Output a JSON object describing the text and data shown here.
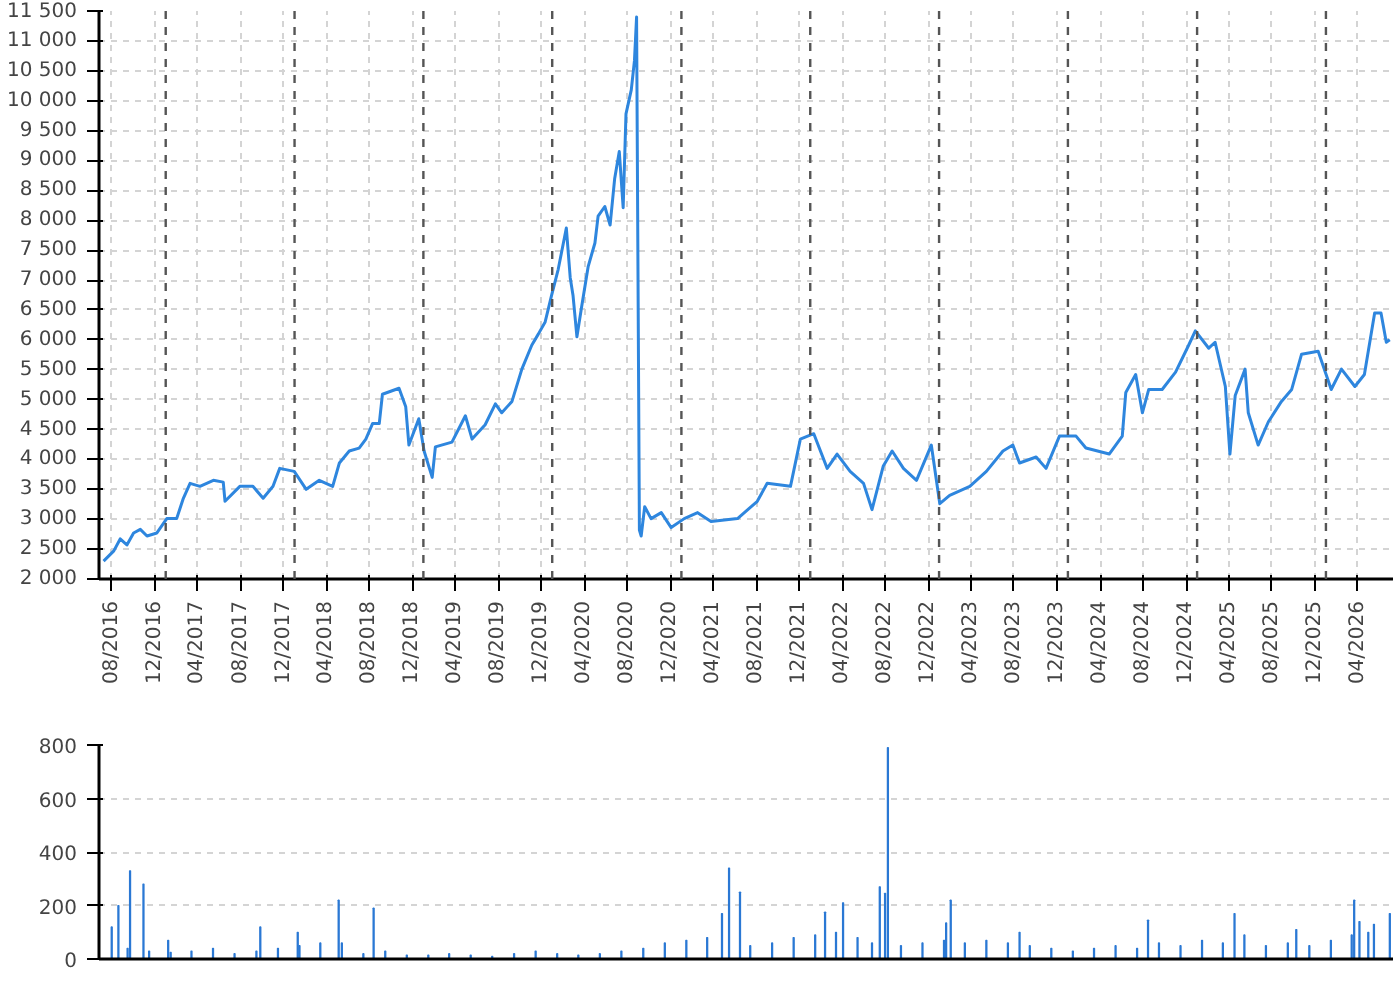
{
  "chart_data": [
    {
      "type": "line",
      "color": "#2e86de",
      "grid": true,
      "xlim": [
        "2016-06-26",
        "2026-07-10"
      ],
      "ylim": [
        2000,
        11500
      ],
      "yticks": [
        {
          "value": 2000,
          "label": "2 000"
        },
        {
          "value": 2500,
          "label": "2 500"
        },
        {
          "value": 3000,
          "label": "3 000"
        },
        {
          "value": 3500,
          "label": "3 500"
        },
        {
          "value": 4000,
          "label": "4 000"
        },
        {
          "value": 4500,
          "label": "4 500"
        },
        {
          "value": 5000,
          "label": "5 000"
        },
        {
          "value": 5500,
          "label": "5 500"
        },
        {
          "value": 6000,
          "label": "6 000"
        },
        {
          "value": 6500,
          "label": "6 500"
        },
        {
          "value": 7000,
          "label": "7 000"
        },
        {
          "value": 7500,
          "label": "7 500"
        },
        {
          "value": 8000,
          "label": "8 000"
        },
        {
          "value": 8500,
          "label": "8 500"
        },
        {
          "value": 9000,
          "label": "9 000"
        },
        {
          "value": 9500,
          "label": "9 500"
        },
        {
          "value": 10000,
          "label": "10 000"
        },
        {
          "value": 10500,
          "label": "10 500"
        },
        {
          "value": 11000,
          "label": "11 000"
        },
        {
          "value": 11500,
          "label": "11 500"
        }
      ],
      "xticks": [
        {
          "value": "2016-08-01",
          "label": "08/2016"
        },
        {
          "value": "2016-12-01",
          "label": "12/2016"
        },
        {
          "value": "2017-04-01",
          "label": "04/2017"
        },
        {
          "value": "2017-08-01",
          "label": "08/2017"
        },
        {
          "value": "2017-12-01",
          "label": "12/2017"
        },
        {
          "value": "2018-04-01",
          "label": "04/2018"
        },
        {
          "value": "2018-08-01",
          "label": "08/2018"
        },
        {
          "value": "2018-12-01",
          "label": "12/2018"
        },
        {
          "value": "2019-04-01",
          "label": "04/2019"
        },
        {
          "value": "2019-08-01",
          "label": "08/2019"
        },
        {
          "value": "2019-12-01",
          "label": "12/2019"
        },
        {
          "value": "2020-04-01",
          "label": "04/2020"
        },
        {
          "value": "2020-08-01",
          "label": "08/2020"
        },
        {
          "value": "2020-12-01",
          "label": "12/2020"
        },
        {
          "value": "2021-04-01",
          "label": "04/2021"
        },
        {
          "value": "2021-08-01",
          "label": "08/2021"
        },
        {
          "value": "2021-12-01",
          "label": "12/2021"
        },
        {
          "value": "2022-04-01",
          "label": "04/2022"
        },
        {
          "value": "2022-08-01",
          "label": "08/2022"
        },
        {
          "value": "2022-12-01",
          "label": "12/2022"
        },
        {
          "value": "2023-04-01",
          "label": "04/2023"
        },
        {
          "value": "2023-08-01",
          "label": "08/2023"
        },
        {
          "value": "2023-12-01",
          "label": "12/2023"
        },
        {
          "value": "2024-04-01",
          "label": "04/2024"
        },
        {
          "value": "2024-08-01",
          "label": "08/2024"
        },
        {
          "value": "2024-12-01",
          "label": "12/2024"
        },
        {
          "value": "2025-04-01",
          "label": "04/2025"
        },
        {
          "value": "2025-08-01",
          "label": "08/2025"
        },
        {
          "value": "2025-12-01",
          "label": "12/2025"
        },
        {
          "value": "2026-04-01",
          "label": "04/2026"
        }
      ],
      "ref_lines": [
        {
          "axis": "x",
          "value": "2017-01-01",
          "color": "#555555",
          "line_style": "dashed"
        },
        {
          "axis": "x",
          "value": "2018-01-01",
          "color": "#555555",
          "line_style": "dashed"
        },
        {
          "axis": "x",
          "value": "2019-01-01",
          "color": "#555555",
          "line_style": "dashed"
        },
        {
          "axis": "x",
          "value": "2020-01-01",
          "color": "#555555",
          "line_style": "dashed"
        },
        {
          "axis": "x",
          "value": "2021-01-01",
          "color": "#555555",
          "line_style": "dashed"
        },
        {
          "axis": "x",
          "value": "2022-01-01",
          "color": "#555555",
          "line_style": "dashed"
        },
        {
          "axis": "x",
          "value": "2023-01-01",
          "color": "#555555",
          "line_style": "dashed"
        },
        {
          "axis": "x",
          "value": "2024-01-01",
          "color": "#555555",
          "line_style": "dashed"
        },
        {
          "axis": "x",
          "value": "2025-01-01",
          "color": "#555555",
          "line_style": "dashed"
        },
        {
          "axis": "x",
          "value": "2026-01-01",
          "color": "#555555",
          "line_style": "dashed"
        }
      ],
      "x": [
        "2016-07-09",
        "2016-08-07",
        "2016-08-25",
        "2016-09-13",
        "2016-10-02",
        "2016-10-21",
        "2016-11-09",
        "2016-12-07",
        "2017-01-04",
        "2017-02-01",
        "2017-02-20",
        "2017-03-11",
        "2017-04-08",
        "2017-05-16",
        "2017-06-13",
        "2017-06-18",
        "2017-07-30",
        "2017-09-05",
        "2017-10-04",
        "2017-11-01",
        "2017-11-20",
        "2017-12-31",
        "2018-02-03",
        "2018-03-12",
        "2018-04-19",
        "2018-05-08",
        "2018-06-05",
        "2018-07-03",
        "2018-07-22",
        "2018-08-10",
        "2018-08-29",
        "2018-09-07",
        "2018-10-24",
        "2018-11-12",
        "2018-11-21",
        "2018-12-19",
        "2019-01-03",
        "2019-01-26",
        "2019-02-04",
        "2019-03-23",
        "2019-04-30",
        "2019-05-19",
        "2019-06-25",
        "2019-07-24",
        "2019-08-11",
        "2019-09-09",
        "2019-10-07",
        "2019-11-04",
        "2019-11-23",
        "2019-12-12",
        "2019-12-30",
        "2020-01-18",
        "2020-02-10",
        "2020-02-21",
        "2020-02-29",
        "2020-03-11",
        "2020-03-24",
        "2020-04-12",
        "2020-05-01",
        "2020-05-10",
        "2020-05-29",
        "2020-06-13",
        "2020-06-26",
        "2020-07-09",
        "2020-07-20",
        "2020-07-28",
        "2020-08-12",
        "2020-08-21",
        "2020-08-27",
        "2020-09-04",
        "2020-09-09",
        "2020-09-19",
        "2020-10-07",
        "2020-11-05",
        "2020-12-03",
        "2021-01-09",
        "2021-02-16",
        "2021-03-26",
        "2021-06-09",
        "2021-08-04",
        "2021-09-01",
        "2021-11-06",
        "2021-12-04",
        "2022-01-11",
        "2022-02-18",
        "2022-03-18",
        "2022-04-24",
        "2022-06-01",
        "2022-06-25",
        "2022-07-27",
        "2022-08-21",
        "2022-09-22",
        "2022-10-29",
        "2022-12-10",
        "2023-01-03",
        "2023-01-31",
        "2023-03-29",
        "2023-05-15",
        "2023-07-01",
        "2023-07-29",
        "2023-08-17",
        "2023-10-03",
        "2023-10-31",
        "2023-12-08",
        "2024-01-24",
        "2024-02-21",
        "2024-04-27",
        "2024-06-03",
        "2024-06-13",
        "2024-07-11",
        "2024-07-30",
        "2024-08-17",
        "2024-09-24",
        "2024-11-01",
        "2024-12-08",
        "2024-12-27",
        "2025-02-03",
        "2025-02-21",
        "2025-03-22",
        "2025-04-04",
        "2025-04-19",
        "2025-05-17",
        "2025-05-26",
        "2025-06-23",
        "2025-07-22",
        "2025-08-28",
        "2025-09-26",
        "2025-10-24",
        "2025-12-10",
        "2026-01-16",
        "2026-02-14",
        "2026-03-24",
        "2026-04-20",
        "2026-05-19",
        "2026-06-06",
        "2026-06-21",
        "2026-07-01"
      ],
      "values": [
        2300,
        2470,
        2670,
        2570,
        2770,
        2830,
        2720,
        2770,
        3010,
        3010,
        3350,
        3600,
        3550,
        3650,
        3620,
        3300,
        3550,
        3550,
        3350,
        3550,
        3850,
        3800,
        3500,
        3650,
        3550,
        3940,
        4140,
        4190,
        4340,
        4600,
        4600,
        5090,
        5190,
        4880,
        4240,
        4680,
        4140,
        3700,
        4210,
        4290,
        4730,
        4340,
        4580,
        4930,
        4780,
        4970,
        5510,
        5910,
        6100,
        6300,
        6740,
        7180,
        7870,
        7040,
        6740,
        6050,
        6540,
        7230,
        7620,
        8070,
        8230,
        7920,
        8700,
        9150,
        8210,
        9780,
        10180,
        10670,
        11400,
        2820,
        2720,
        3210,
        3010,
        3110,
        2860,
        3010,
        3110,
        2960,
        3010,
        3300,
        3600,
        3550,
        4340,
        4430,
        3850,
        4090,
        3800,
        3600,
        3160,
        3890,
        4140,
        3850,
        3650,
        4240,
        3260,
        3400,
        3550,
        3800,
        4140,
        4240,
        3940,
        4040,
        3850,
        4390,
        4390,
        4190,
        4090,
        4390,
        5120,
        5420,
        4780,
        5170,
        5170,
        5460,
        5910,
        6150,
        5860,
        5960,
        5220,
        4090,
        5070,
        5510,
        4780,
        4240,
        4630,
        4970,
        5170,
        5760,
        5810,
        5170,
        5510,
        5220,
        5420,
        6450,
        6450,
        5960,
        6000
      ]
    },
    {
      "type": "bar",
      "color": "#2a78d4",
      "grid": true,
      "tick_labels": "y",
      "xlim": [
        "2016-06-26",
        "2026-07-10"
      ],
      "ylim": [
        0,
        800
      ],
      "yticks": [
        0,
        200,
        400,
        600,
        800
      ],
      "x": [
        "2016-08-01",
        "2016-08-20",
        "2016-09-15",
        "2016-09-22",
        "2016-10-30",
        "2016-11-15",
        "2017-01-08",
        "2017-01-15",
        "2017-03-15",
        "2017-05-15",
        "2017-07-15",
        "2017-09-15",
        "2017-09-26",
        "2017-11-15",
        "2018-01-10",
        "2018-01-15",
        "2018-03-15",
        "2018-05-06",
        "2018-05-15",
        "2018-07-15",
        "2018-08-13",
        "2018-09-15",
        "2018-11-15",
        "2019-01-15",
        "2019-03-15",
        "2019-05-15",
        "2019-07-15",
        "2019-09-15",
        "2019-11-15",
        "2020-01-15",
        "2020-03-15",
        "2020-05-15",
        "2020-07-15",
        "2020-09-15",
        "2020-11-15",
        "2021-01-15",
        "2021-03-15",
        "2021-04-26",
        "2021-05-16",
        "2021-06-16",
        "2021-07-15",
        "2021-09-15",
        "2021-11-15",
        "2022-01-15",
        "2022-02-12",
        "2022-03-15",
        "2022-04-04",
        "2022-05-15",
        "2022-06-25",
        "2022-07-17",
        "2022-08-01",
        "2022-08-09",
        "2022-09-15",
        "2022-11-15",
        "2023-01-15",
        "2023-01-21",
        "2023-02-03",
        "2023-03-15",
        "2023-05-15",
        "2023-07-15",
        "2023-08-17",
        "2023-09-15",
        "2023-11-15",
        "2024-01-15",
        "2024-03-15",
        "2024-05-15",
        "2024-07-15",
        "2024-08-15",
        "2024-09-15",
        "2024-11-15",
        "2025-01-15",
        "2025-03-15",
        "2025-04-17",
        "2025-05-15",
        "2025-07-15",
        "2025-09-15",
        "2025-10-09",
        "2025-11-15",
        "2026-01-15",
        "2026-03-15",
        "2026-03-22",
        "2026-04-06",
        "2026-05-01",
        "2026-05-17",
        "2026-07-01"
      ],
      "values": [
        120,
        200,
        40,
        330,
        280,
        30,
        70,
        25,
        30,
        40,
        20,
        30,
        120,
        40,
        100,
        50,
        60,
        220,
        60,
        20,
        190,
        30,
        15,
        15,
        20,
        15,
        10,
        20,
        30,
        20,
        15,
        20,
        30,
        40,
        60,
        70,
        80,
        170,
        340,
        250,
        50,
        60,
        80,
        90,
        175,
        100,
        210,
        80,
        60,
        270,
        245,
        790,
        50,
        60,
        70,
        135,
        220,
        60,
        70,
        60,
        100,
        50,
        40,
        30,
        40,
        50,
        40,
        145,
        60,
        50,
        70,
        60,
        170,
        90,
        50,
        60,
        110,
        50,
        70,
        90,
        220,
        140,
        100,
        130,
        170
      ]
    }
  ]
}
